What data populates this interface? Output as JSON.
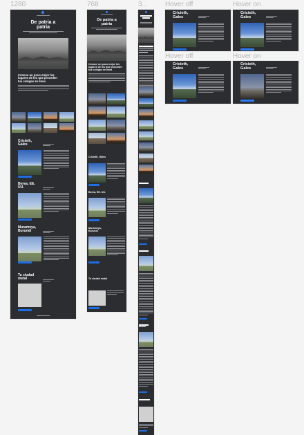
{
  "frames": {
    "desktop": "1280",
    "tablet": "768",
    "mobile": "3...",
    "hover_off_top": "Hover off",
    "hover_on_top": "Hover on",
    "hover_off_bottom": "Hover off",
    "hover_on_bottom": "Hover on"
  },
  "article": {
    "title_line1": "De patria a",
    "title_line2": "patria",
    "section_heading_l1": "Conoce un poco mejor los",
    "section_heading_l2": "lugares de los que proceden",
    "section_heading_l3": "tus colegas en línea",
    "place1_l1": "Cricieth,",
    "place1_l2": "Gales",
    "place2_l1": "Berea, EE.",
    "place2_l2": "UU.",
    "place3_l1": "Muramvya,",
    "place3_l2": "Burundi",
    "place4_l1": "Tu ciudad",
    "place4_l2": "metal"
  },
  "tablet": {
    "title_line1": "De patria a",
    "title_line2": "patria",
    "section_heading_l1": "Conoce un poco mejor los",
    "section_heading_l2": "lugares de los que proceden",
    "section_heading_l3": "tus colegas en línea",
    "place1": "Cricieth, Gales",
    "place2": "Berea, EE. UU.",
    "place3_l1": "Muramvya,",
    "place3_l2": "Burundi",
    "place4": "Tu ciudad metal"
  },
  "hover_cards": {
    "place_l1": "Cricieth,",
    "place_l2": "Gales"
  },
  "colors": {
    "page_bg": "#f4f4f4",
    "artboard_bg": "#2b2d30",
    "accent_button": "#1e6fe6",
    "frame_label": "#b5b5b5"
  }
}
